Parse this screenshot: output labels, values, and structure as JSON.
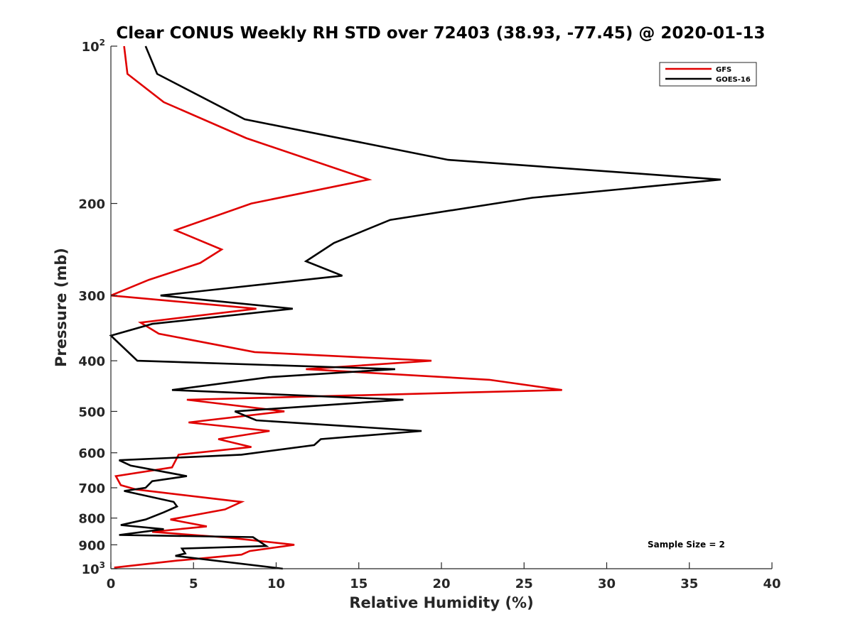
{
  "chart_data": {
    "type": "line",
    "title": "Clear CONUS Weekly RH STD over 72403 (38.93, -77.45) @ 2020-01-13",
    "xlabel": "Relative Humidity (%)",
    "ylabel": "Pressure (mb)",
    "xlim": [
      0,
      40
    ],
    "ylim": [
      100,
      1000
    ],
    "y_scale": "log",
    "y_reversed": true,
    "grid": false,
    "legend_position": "top-right",
    "x_ticks": [
      {
        "value": 0,
        "label": "0"
      },
      {
        "value": 5,
        "label": "5"
      },
      {
        "value": 10,
        "label": "10"
      },
      {
        "value": 15,
        "label": "15"
      },
      {
        "value": 20,
        "label": "20"
      },
      {
        "value": 25,
        "label": "25"
      },
      {
        "value": 30,
        "label": "30"
      },
      {
        "value": 35,
        "label": "35"
      },
      {
        "value": 40,
        "label": "40"
      }
    ],
    "y_ticks": [
      {
        "value": 100,
        "label": "10",
        "exp": "2"
      },
      {
        "value": 200,
        "label": "200"
      },
      {
        "value": 300,
        "label": "300"
      },
      {
        "value": 400,
        "label": "400"
      },
      {
        "value": 500,
        "label": "500"
      },
      {
        "value": 600,
        "label": "600"
      },
      {
        "value": 700,
        "label": "700"
      },
      {
        "value": 800,
        "label": "800"
      },
      {
        "value": 900,
        "label": "900"
      },
      {
        "value": 1000,
        "label": "10",
        "exp": "3"
      }
    ],
    "annotation": "Sample Size = 2",
    "series": [
      {
        "name": "GFS",
        "color": "#e00000",
        "points": [
          [
            0.8,
            100
          ],
          [
            1.0,
            113
          ],
          [
            3.2,
            128
          ],
          [
            8.2,
            150
          ],
          [
            15.6,
            180
          ],
          [
            8.5,
            200
          ],
          [
            3.9,
            225
          ],
          [
            6.7,
            245
          ],
          [
            5.4,
            260
          ],
          [
            2.3,
            280
          ],
          [
            0.0,
            300
          ],
          [
            8.8,
            318
          ],
          [
            1.8,
            338
          ],
          [
            2.9,
            355
          ],
          [
            8.7,
            385
          ],
          [
            19.4,
            400
          ],
          [
            11.8,
            415
          ],
          [
            22.9,
            435
          ],
          [
            27.3,
            455
          ],
          [
            4.6,
            475
          ],
          [
            10.5,
            500
          ],
          [
            4.7,
            525
          ],
          [
            9.6,
            545
          ],
          [
            6.5,
            565
          ],
          [
            8.5,
            585
          ],
          [
            4.1,
            605
          ],
          [
            3.7,
            640
          ],
          [
            0.3,
            665
          ],
          [
            0.6,
            692
          ],
          [
            1.5,
            705
          ],
          [
            7.9,
            745
          ],
          [
            6.9,
            770
          ],
          [
            3.6,
            805
          ],
          [
            5.8,
            830
          ],
          [
            2.5,
            850
          ],
          [
            7.1,
            872
          ],
          [
            11.1,
            900
          ],
          [
            8.4,
            925
          ],
          [
            7.9,
            940
          ],
          [
            4.0,
            965
          ],
          [
            0.2,
            995
          ]
        ]
      },
      {
        "name": "GOES-16",
        "color": "#000000",
        "points": [
          [
            2.1,
            100
          ],
          [
            2.8,
            113
          ],
          [
            8.1,
            138
          ],
          [
            20.4,
            165
          ],
          [
            36.9,
            180
          ],
          [
            25.5,
            195
          ],
          [
            16.9,
            215
          ],
          [
            13.5,
            238
          ],
          [
            11.8,
            258
          ],
          [
            14.0,
            275
          ],
          [
            3.0,
            300
          ],
          [
            11.0,
            318
          ],
          [
            2.5,
            340
          ],
          [
            0.0,
            358
          ],
          [
            1.6,
            400
          ],
          [
            17.2,
            415
          ],
          [
            9.6,
            430
          ],
          [
            3.7,
            455
          ],
          [
            17.7,
            475
          ],
          [
            7.5,
            500
          ],
          [
            8.8,
            520
          ],
          [
            18.8,
            545
          ],
          [
            12.7,
            565
          ],
          [
            12.3,
            580
          ],
          [
            7.9,
            605
          ],
          [
            0.5,
            620
          ],
          [
            1.2,
            635
          ],
          [
            4.6,
            665
          ],
          [
            2.5,
            680
          ],
          [
            2.1,
            700
          ],
          [
            0.8,
            710
          ],
          [
            3.8,
            745
          ],
          [
            4.0,
            760
          ],
          [
            3.2,
            780
          ],
          [
            2.1,
            805
          ],
          [
            0.6,
            825
          ],
          [
            3.2,
            840
          ],
          [
            0.5,
            862
          ],
          [
            8.6,
            870
          ],
          [
            9.4,
            905
          ],
          [
            4.3,
            915
          ],
          [
            4.5,
            935
          ],
          [
            3.9,
            945
          ],
          [
            10.4,
            1000
          ]
        ]
      }
    ]
  }
}
